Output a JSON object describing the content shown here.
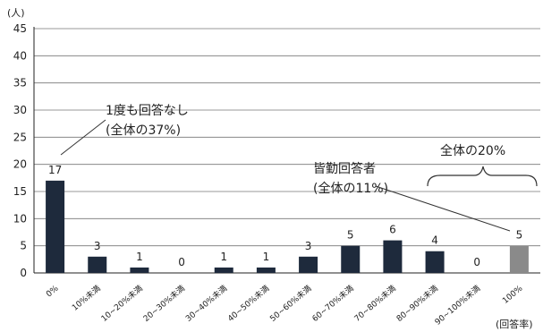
{
  "chart_data": {
    "type": "bar",
    "y_unit": "(人)",
    "x_unit": "(回答率)",
    "categories": [
      "0%",
      "10%未満",
      "10~20%未満",
      "20~30%未満",
      "30~40%未満",
      "40~50%未満",
      "50~60%未満",
      "60~70%未満",
      "70~80%未満",
      "80~90%未満",
      "90~100%未満",
      "100%"
    ],
    "values": [
      17,
      3,
      1,
      0,
      1,
      1,
      3,
      5,
      6,
      4,
      0,
      5
    ],
    "bar_colors": [
      "#1e2a3c",
      "#1e2a3c",
      "#1e2a3c",
      "#1e2a3c",
      "#1e2a3c",
      "#1e2a3c",
      "#1e2a3c",
      "#1e2a3c",
      "#1e2a3c",
      "#1e2a3c",
      "#1e2a3c",
      "#8a8a8a"
    ],
    "ylim": [
      0,
      45
    ],
    "yticks": [
      0,
      5,
      10,
      15,
      20,
      25,
      30,
      35,
      40,
      45
    ],
    "grid": true,
    "annotations": [
      {
        "id": "none",
        "lines": [
          "1度も回答なし",
          "(全体の37%)"
        ]
      },
      {
        "id": "perfect",
        "lines": [
          "皆勤回答者",
          "(全体の11%)"
        ]
      },
      {
        "id": "twenty",
        "lines": [
          "全体の20%"
        ]
      }
    ]
  }
}
